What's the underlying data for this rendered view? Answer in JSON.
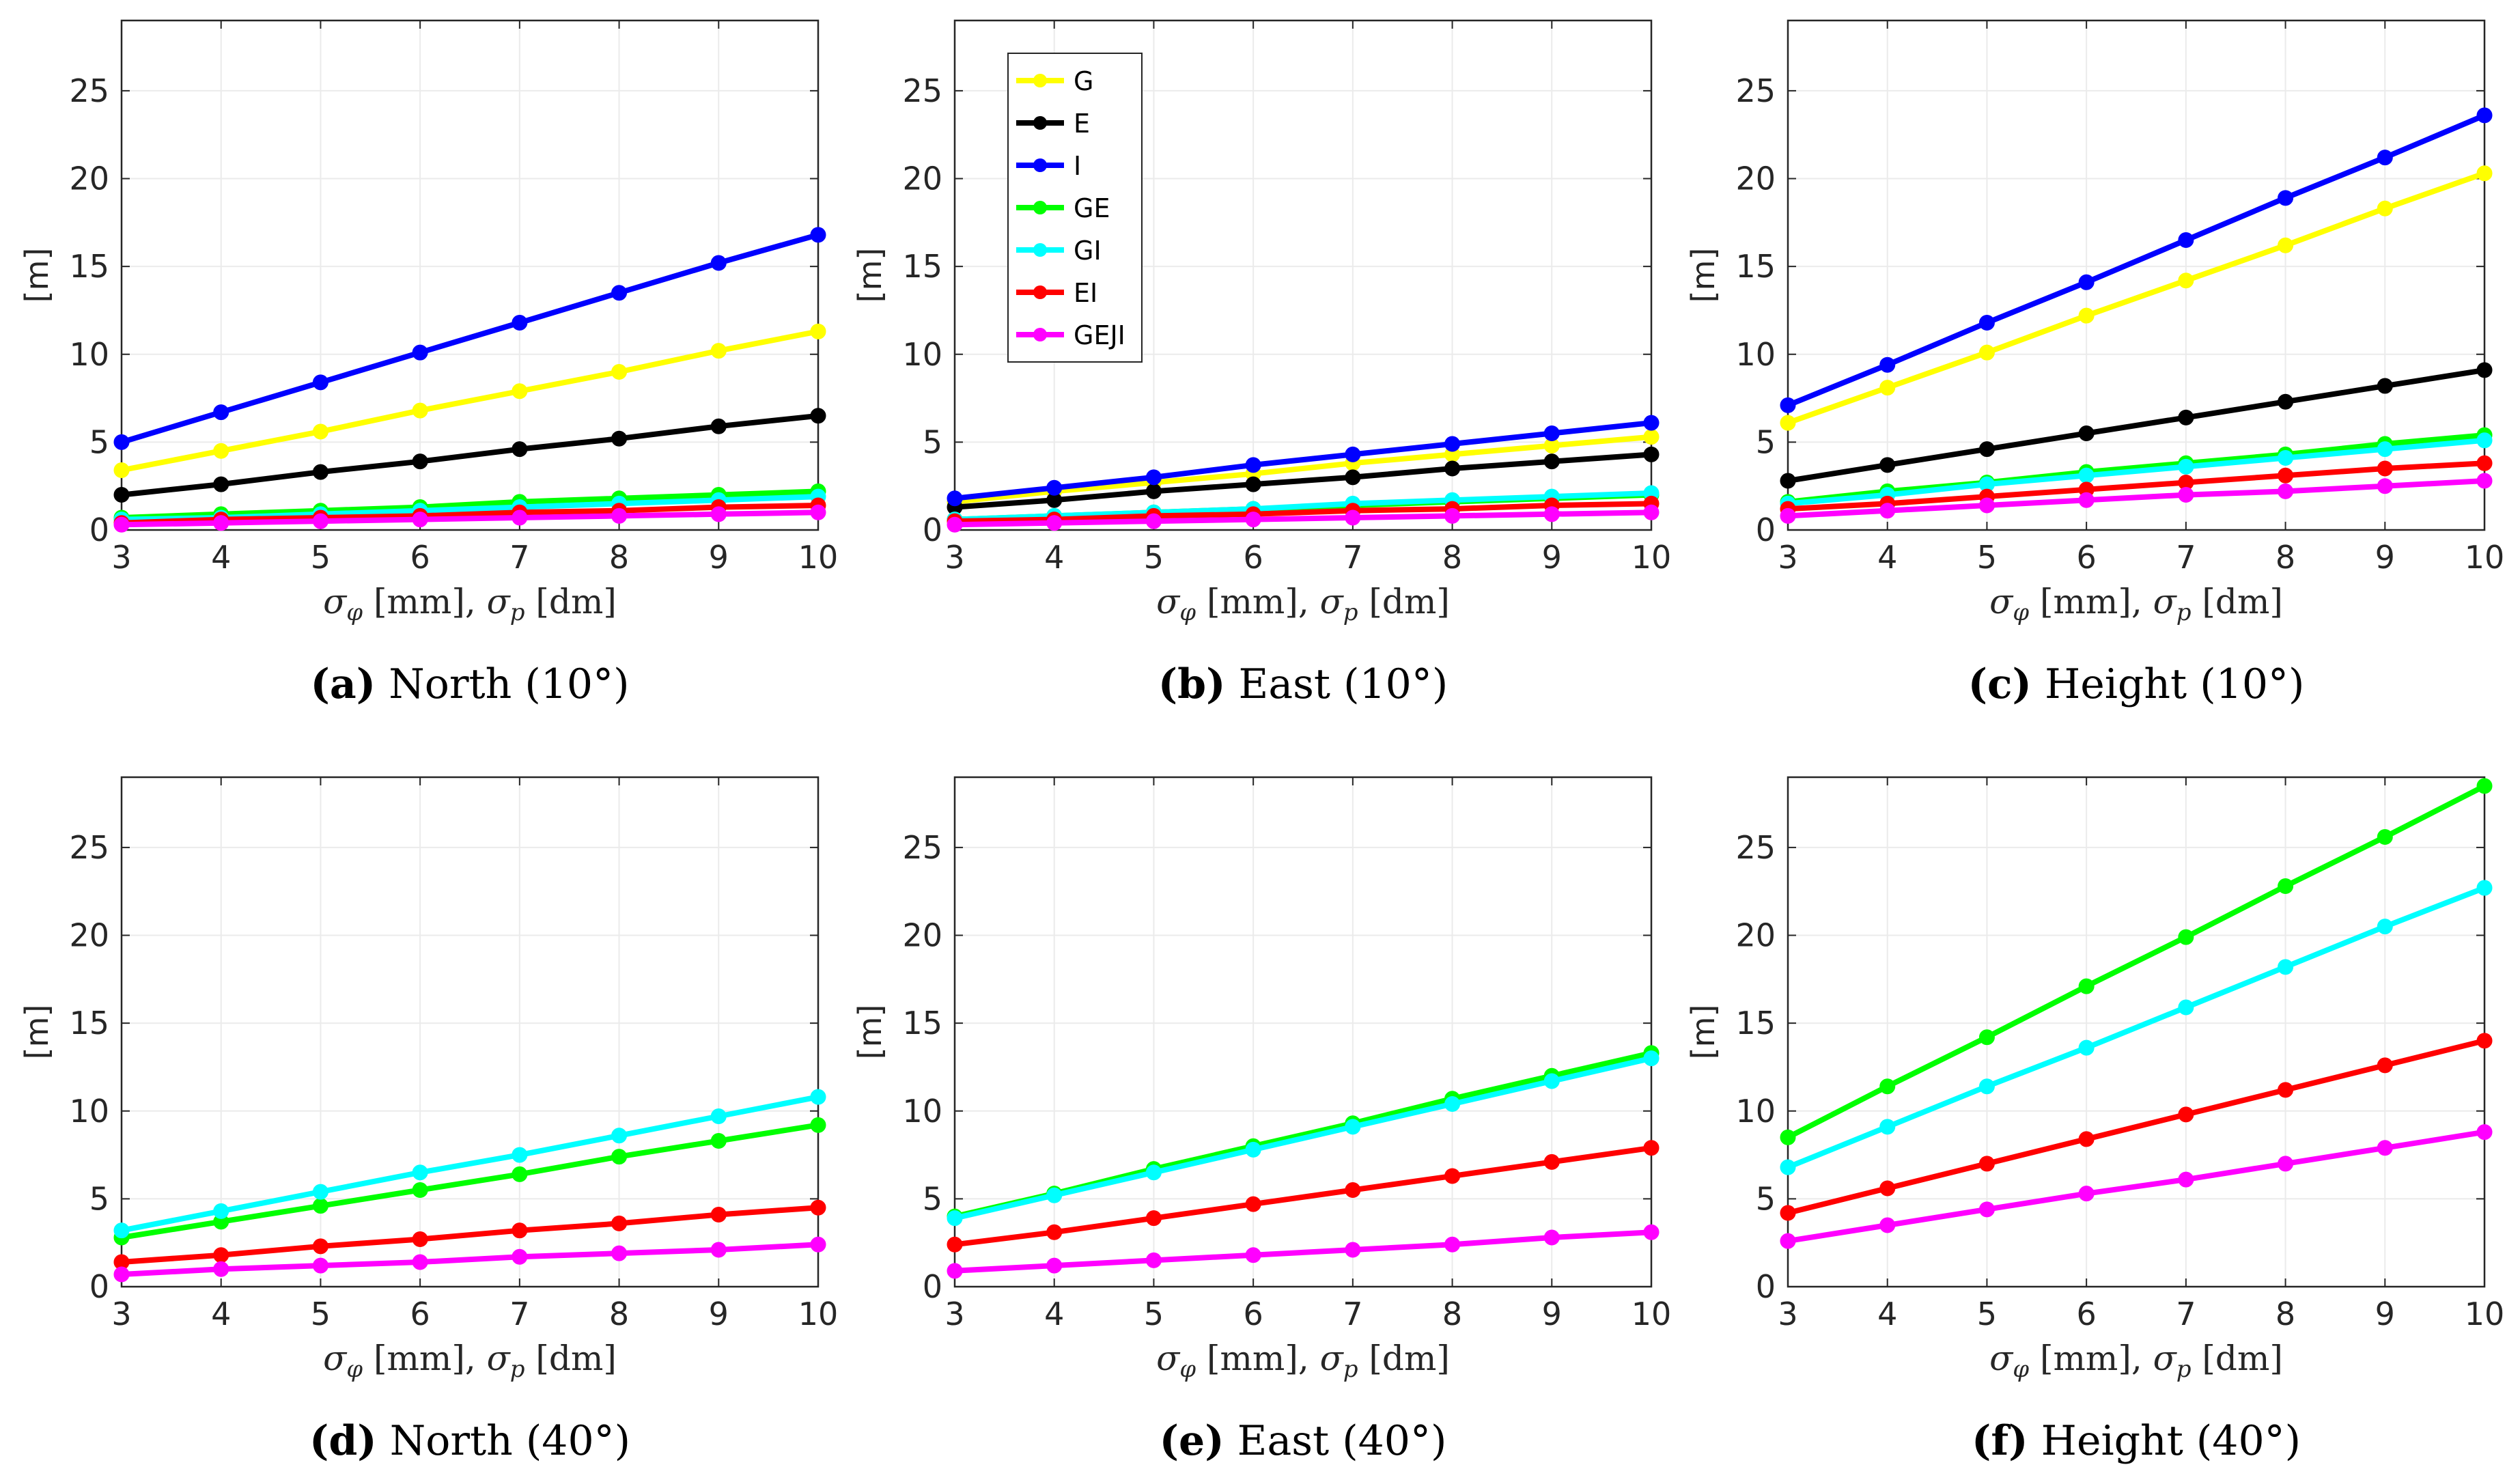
{
  "chart_data": [
    {
      "type": "line",
      "caption_letter": "(a)",
      "caption_text": " North (10°)",
      "xlabel": "σ_φ [mm], σ_p [dm]",
      "xlabel_parts": [
        "σ",
        "φ",
        " [mm], ",
        "σ",
        "p",
        " [dm]"
      ],
      "ylabel": "[m]",
      "x": [
        3,
        4,
        5,
        6,
        7,
        8,
        9,
        10
      ],
      "xlim": [
        3,
        10
      ],
      "ylim": [
        0,
        29
      ],
      "yticks": [
        0,
        5,
        10,
        15,
        20,
        25
      ],
      "xticks": [
        "3",
        "4",
        "5",
        "6",
        "7",
        "8",
        "9",
        "10"
      ],
      "grid": true,
      "series": [
        {
          "name": "G",
          "color": "#ffff00",
          "values": [
            3.4,
            4.5,
            5.6,
            6.8,
            7.9,
            9.0,
            10.2,
            11.3
          ]
        },
        {
          "name": "E",
          "color": "#000000",
          "values": [
            2.0,
            2.6,
            3.3,
            3.9,
            4.6,
            5.2,
            5.9,
            6.5
          ]
        },
        {
          "name": "I",
          "color": "#0000ff",
          "values": [
            5.0,
            6.7,
            8.4,
            10.1,
            11.8,
            13.5,
            15.2,
            16.8
          ]
        },
        {
          "name": "GE",
          "color": "#00ff00",
          "values": [
            0.7,
            0.9,
            1.1,
            1.3,
            1.6,
            1.8,
            2.0,
            2.2
          ]
        },
        {
          "name": "GI",
          "color": "#00ffff",
          "values": [
            0.6,
            0.7,
            0.9,
            1.1,
            1.3,
            1.5,
            1.7,
            1.9
          ]
        },
        {
          "name": "EI",
          "color": "#ff0000",
          "values": [
            0.4,
            0.6,
            0.7,
            0.8,
            1.0,
            1.1,
            1.3,
            1.4
          ]
        },
        {
          "name": "GEJI",
          "color": "#ff00ff",
          "values": [
            0.3,
            0.4,
            0.5,
            0.6,
            0.7,
            0.8,
            0.9,
            1.0
          ]
        }
      ]
    },
    {
      "type": "line",
      "caption_letter": "(b)",
      "caption_text": " East (10°)",
      "xlabel": "σ_φ [mm], σ_p [dm]",
      "xlabel_parts": [
        "σ",
        "φ",
        " [mm], ",
        "σ",
        "p",
        " [dm]"
      ],
      "ylabel": "[m]",
      "x": [
        3,
        4,
        5,
        6,
        7,
        8,
        9,
        10
      ],
      "xlim": [
        3,
        10
      ],
      "ylim": [
        0,
        29
      ],
      "yticks": [
        0,
        5,
        10,
        15,
        20,
        25
      ],
      "xticks": [
        "3",
        "4",
        "5",
        "6",
        "7",
        "8",
        "9",
        "10"
      ],
      "grid": true,
      "legend": {
        "placement": "top-left",
        "entries": [
          "G",
          "E",
          "I",
          "GE",
          "GI",
          "EI",
          "GEJI"
        ]
      },
      "series": [
        {
          "name": "G",
          "color": "#ffff00",
          "values": [
            1.6,
            2.2,
            2.7,
            3.2,
            3.8,
            4.3,
            4.8,
            5.3
          ]
        },
        {
          "name": "E",
          "color": "#000000",
          "values": [
            1.3,
            1.7,
            2.2,
            2.6,
            3.0,
            3.5,
            3.9,
            4.3
          ]
        },
        {
          "name": "I",
          "color": "#0000ff",
          "values": [
            1.8,
            2.4,
            3.0,
            3.7,
            4.3,
            4.9,
            5.5,
            6.1
          ]
        },
        {
          "name": "GE",
          "color": "#00ff00",
          "values": [
            0.6,
            0.8,
            1.0,
            1.2,
            1.4,
            1.6,
            1.8,
            2.0
          ]
        },
        {
          "name": "GI",
          "color": "#00ffff",
          "values": [
            0.6,
            0.8,
            1.0,
            1.2,
            1.5,
            1.7,
            1.9,
            2.1
          ]
        },
        {
          "name": "EI",
          "color": "#ff0000",
          "values": [
            0.5,
            0.6,
            0.8,
            0.9,
            1.1,
            1.2,
            1.4,
            1.5
          ]
        },
        {
          "name": "GEJI",
          "color": "#ff00ff",
          "values": [
            0.3,
            0.4,
            0.5,
            0.6,
            0.7,
            0.8,
            0.9,
            1.0
          ]
        }
      ]
    },
    {
      "type": "line",
      "caption_letter": "(c)",
      "caption_text": " Height (10°)",
      "xlabel": "σ_φ [mm], σ_p [dm]",
      "xlabel_parts": [
        "σ",
        "φ",
        " [mm], ",
        "σ",
        "p",
        " [dm]"
      ],
      "ylabel": "[m]",
      "x": [
        3,
        4,
        5,
        6,
        7,
        8,
        9,
        10
      ],
      "xlim": [
        3,
        10
      ],
      "ylim": [
        0,
        29
      ],
      "yticks": [
        0,
        5,
        10,
        15,
        20,
        25
      ],
      "xticks": [
        "3",
        "4",
        "5",
        "6",
        "7",
        "8",
        "9",
        "10"
      ],
      "grid": true,
      "series": [
        {
          "name": "G",
          "color": "#ffff00",
          "values": [
            6.1,
            8.1,
            10.1,
            12.2,
            14.2,
            16.2,
            18.3,
            20.3
          ]
        },
        {
          "name": "E",
          "color": "#000000",
          "values": [
            2.8,
            3.7,
            4.6,
            5.5,
            6.4,
            7.3,
            8.2,
            9.1
          ]
        },
        {
          "name": "I",
          "color": "#0000ff",
          "values": [
            7.1,
            9.4,
            11.8,
            14.1,
            16.5,
            18.9,
            21.2,
            23.6
          ]
        },
        {
          "name": "GE",
          "color": "#00ff00",
          "values": [
            1.6,
            2.2,
            2.7,
            3.3,
            3.8,
            4.3,
            4.9,
            5.4
          ]
        },
        {
          "name": "GI",
          "color": "#00ffff",
          "values": [
            1.5,
            2.0,
            2.6,
            3.1,
            3.6,
            4.1,
            4.6,
            5.1
          ]
        },
        {
          "name": "EI",
          "color": "#ff0000",
          "values": [
            1.2,
            1.5,
            1.9,
            2.3,
            2.7,
            3.1,
            3.5,
            3.8
          ]
        },
        {
          "name": "GEJI",
          "color": "#ff00ff",
          "values": [
            0.8,
            1.1,
            1.4,
            1.7,
            2.0,
            2.2,
            2.5,
            2.8
          ]
        }
      ]
    },
    {
      "type": "line",
      "caption_letter": "(d)",
      "caption_text": " North (40°)",
      "xlabel": "σ_φ [mm], σ_p [dm]",
      "xlabel_parts": [
        "σ",
        "φ",
        " [mm], ",
        "σ",
        "p",
        " [dm]"
      ],
      "ylabel": "[m]",
      "x": [
        3,
        4,
        5,
        6,
        7,
        8,
        9,
        10
      ],
      "xlim": [
        3,
        10
      ],
      "ylim": [
        0,
        29
      ],
      "yticks": [
        0,
        5,
        10,
        15,
        20,
        25
      ],
      "xticks": [
        "3",
        "4",
        "5",
        "6",
        "7",
        "8",
        "9",
        "10"
      ],
      "grid": true,
      "series": [
        {
          "name": "GE",
          "color": "#00ff00",
          "values": [
            2.8,
            3.7,
            4.6,
            5.5,
            6.4,
            7.4,
            8.3,
            9.2
          ]
        },
        {
          "name": "GI",
          "color": "#00ffff",
          "values": [
            3.2,
            4.3,
            5.4,
            6.5,
            7.5,
            8.6,
            9.7,
            10.8
          ]
        },
        {
          "name": "EI",
          "color": "#ff0000",
          "values": [
            1.4,
            1.8,
            2.3,
            2.7,
            3.2,
            3.6,
            4.1,
            4.5
          ]
        },
        {
          "name": "GEJI",
          "color": "#ff00ff",
          "values": [
            0.7,
            1.0,
            1.2,
            1.4,
            1.7,
            1.9,
            2.1,
            2.4
          ]
        }
      ]
    },
    {
      "type": "line",
      "caption_letter": "(e)",
      "caption_text": " East (40°)",
      "xlabel": "σ_φ [mm], σ_p [dm]",
      "xlabel_parts": [
        "σ",
        "φ",
        " [mm], ",
        "σ",
        "p",
        " [dm]"
      ],
      "ylabel": "[m]",
      "x": [
        3,
        4,
        5,
        6,
        7,
        8,
        9,
        10
      ],
      "xlim": [
        3,
        10
      ],
      "ylim": [
        0,
        29
      ],
      "yticks": [
        0,
        5,
        10,
        15,
        20,
        25
      ],
      "xticks": [
        "3",
        "4",
        "5",
        "6",
        "7",
        "8",
        "9",
        "10"
      ],
      "grid": true,
      "series": [
        {
          "name": "GE",
          "color": "#00ff00",
          "values": [
            4.0,
            5.3,
            6.7,
            8.0,
            9.3,
            10.7,
            12.0,
            13.3
          ]
        },
        {
          "name": "GI",
          "color": "#00ffff",
          "values": [
            3.9,
            5.2,
            6.5,
            7.8,
            9.1,
            10.4,
            11.7,
            13.0
          ]
        },
        {
          "name": "EI",
          "color": "#ff0000",
          "values": [
            2.4,
            3.1,
            3.9,
            4.7,
            5.5,
            6.3,
            7.1,
            7.9
          ]
        },
        {
          "name": "GEJI",
          "color": "#ff00ff",
          "values": [
            0.9,
            1.2,
            1.5,
            1.8,
            2.1,
            2.4,
            2.8,
            3.1
          ]
        }
      ]
    },
    {
      "type": "line",
      "caption_letter": "(f)",
      "caption_text": " Height (40°)",
      "xlabel": "σ_φ [mm], σ_p [dm]",
      "xlabel_parts": [
        "σ",
        "φ",
        " [mm], ",
        "σ",
        "p",
        " [dm]"
      ],
      "ylabel": "[m]",
      "x": [
        3,
        4,
        5,
        6,
        7,
        8,
        9,
        10
      ],
      "xlim": [
        3,
        10
      ],
      "ylim": [
        0,
        29
      ],
      "yticks": [
        0,
        5,
        10,
        15,
        20,
        25
      ],
      "xticks": [
        "3",
        "4",
        "5",
        "6",
        "7",
        "8",
        "9",
        "10"
      ],
      "grid": true,
      "series": [
        {
          "name": "GE",
          "color": "#00ff00",
          "values": [
            8.5,
            11.4,
            14.2,
            17.1,
            19.9,
            22.8,
            25.6,
            28.5
          ]
        },
        {
          "name": "GI",
          "color": "#00ffff",
          "values": [
            6.8,
            9.1,
            11.4,
            13.6,
            15.9,
            18.2,
            20.5,
            22.7
          ]
        },
        {
          "name": "EI",
          "color": "#ff0000",
          "values": [
            4.2,
            5.6,
            7.0,
            8.4,
            9.8,
            11.2,
            12.6,
            14.0
          ]
        },
        {
          "name": "GEJI",
          "color": "#ff00ff",
          "values": [
            2.6,
            3.5,
            4.4,
            5.3,
            6.1,
            7.0,
            7.9,
            8.8
          ]
        }
      ]
    }
  ]
}
